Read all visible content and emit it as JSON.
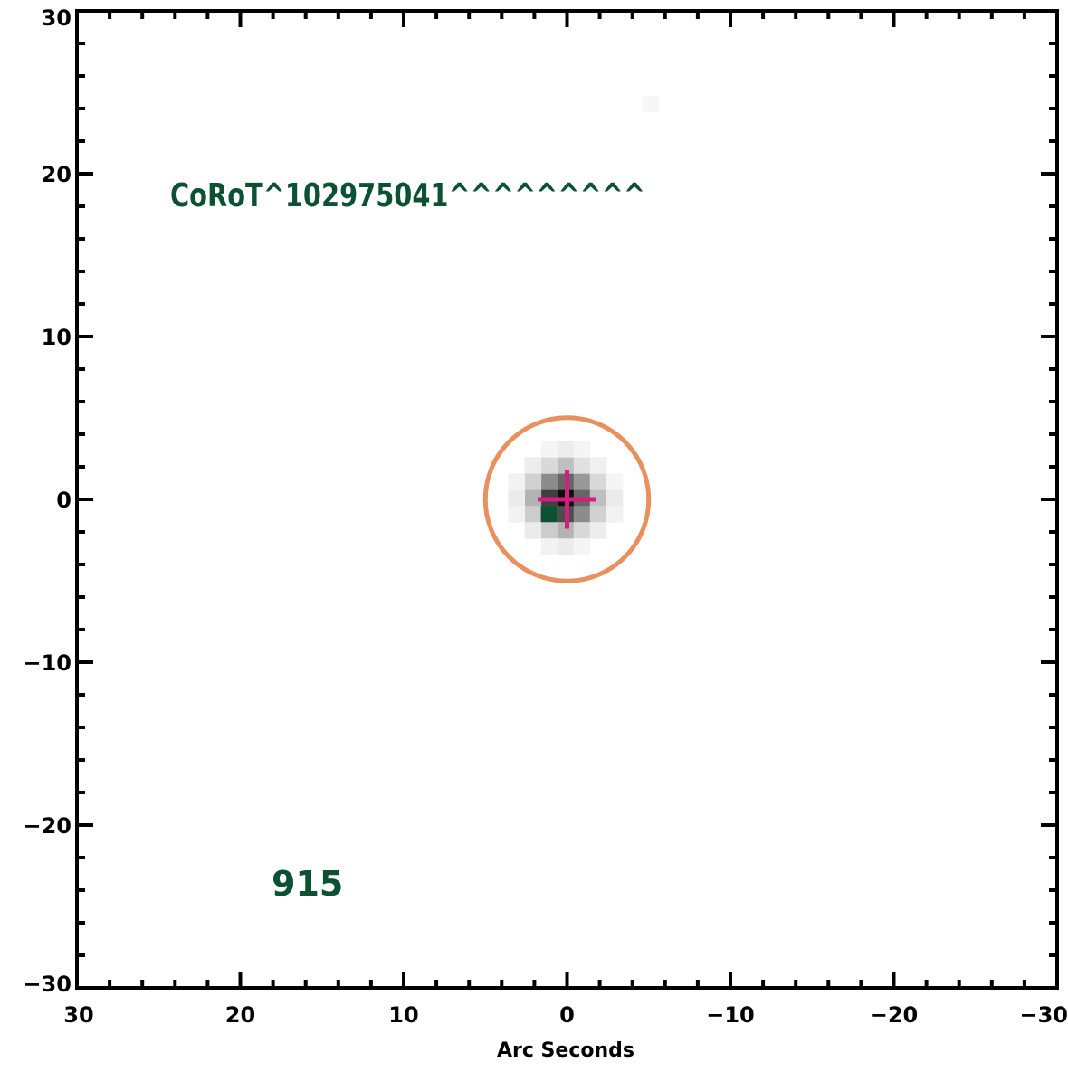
{
  "chart_data": {
    "type": "scatter",
    "title": "",
    "xlabel": "Arc Seconds",
    "ylabel": "",
    "xlim": [
      30,
      -30
    ],
    "ylim": [
      -30,
      30
    ],
    "x_major_ticks": [
      30,
      20,
      10,
      0,
      -10,
      -20,
      -30
    ],
    "y_major_ticks": [
      30,
      20,
      10,
      0,
      -10,
      -20,
      -30
    ],
    "x_tick_labels": [
      "30",
      "20",
      "10",
      "0",
      "−10",
      "−20",
      "−30"
    ],
    "y_tick_labels": [
      "30",
      "20",
      "10",
      "0",
      "−10",
      "−20",
      "−30"
    ],
    "minor_tick_step": 2,
    "grid": false,
    "annotations": {
      "star_label": "CoRoT^102975041^^^^^^^^^",
      "frame_label": "915"
    },
    "target": {
      "x": 0,
      "y": 0,
      "aperture_radius": 5
    },
    "image_pixels": [
      {
        "x": 0.1,
        "y": 0.1,
        "level": 0.95
      },
      {
        "x": 1.1,
        "y": 0.1,
        "level": 0.75
      },
      {
        "x": -0.9,
        "y": 0.1,
        "level": 0.6
      },
      {
        "x": 0.1,
        "y": 1.1,
        "level": 0.6
      },
      {
        "x": 0.1,
        "y": -0.9,
        "level": 0.7
      },
      {
        "x": 1.1,
        "y": 1.1,
        "level": 0.45
      },
      {
        "x": -0.9,
        "y": 1.1,
        "level": 0.4
      },
      {
        "x": 1.1,
        "y": -0.9,
        "level": 0.5
      },
      {
        "x": -0.9,
        "y": -0.9,
        "level": 0.45
      },
      {
        "x": 2.1,
        "y": 0.1,
        "level": 0.3
      },
      {
        "x": -1.9,
        "y": 0.1,
        "level": 0.25
      },
      {
        "x": 0.1,
        "y": 2.1,
        "level": 0.25
      },
      {
        "x": 0.1,
        "y": -1.9,
        "level": 0.3
      },
      {
        "x": 2.1,
        "y": 1.1,
        "level": 0.18
      },
      {
        "x": -1.9,
        "y": 1.1,
        "level": 0.15
      },
      {
        "x": 2.1,
        "y": -0.9,
        "level": 0.2
      },
      {
        "x": -1.9,
        "y": -0.9,
        "level": 0.18
      },
      {
        "x": 1.1,
        "y": 2.1,
        "level": 0.15
      },
      {
        "x": -0.9,
        "y": 2.1,
        "level": 0.12
      },
      {
        "x": 1.1,
        "y": -1.9,
        "level": 0.2
      },
      {
        "x": -0.9,
        "y": -1.9,
        "level": 0.15
      },
      {
        "x": 3.1,
        "y": 0.1,
        "level": 0.08
      },
      {
        "x": -2.9,
        "y": 0.1,
        "level": 0.08
      },
      {
        "x": 0.1,
        "y": 3.1,
        "level": 0.07
      },
      {
        "x": 0.1,
        "y": -2.9,
        "level": 0.08
      },
      {
        "x": 2.1,
        "y": 2.1,
        "level": 0.07
      },
      {
        "x": -1.9,
        "y": 2.1,
        "level": 0.06
      },
      {
        "x": 2.1,
        "y": -1.9,
        "level": 0.08
      },
      {
        "x": -1.9,
        "y": -1.9,
        "level": 0.07
      },
      {
        "x": 3.1,
        "y": 1.1,
        "level": 0.05
      },
      {
        "x": 3.1,
        "y": -0.9,
        "level": 0.05
      },
      {
        "x": -2.9,
        "y": 1.1,
        "level": 0.04
      },
      {
        "x": -2.9,
        "y": -0.9,
        "level": 0.05
      },
      {
        "x": 1.1,
        "y": 3.1,
        "level": 0.04
      },
      {
        "x": -0.9,
        "y": 3.1,
        "level": 0.04
      },
      {
        "x": 1.1,
        "y": -2.9,
        "level": 0.05
      },
      {
        "x": -0.9,
        "y": -2.9,
        "level": 0.04
      },
      {
        "x": -5.1,
        "y": 24.3,
        "level": 0.03
      }
    ],
    "marked_pixel": {
      "x": 1.1,
      "y": -0.9
    },
    "colors": {
      "frame": "#000000",
      "label_text": "#0b5132",
      "aperture": "#e8915e",
      "target_cross": "#d41d7f",
      "marked_pixel": "#0b5132",
      "background": "#ffffff"
    }
  }
}
